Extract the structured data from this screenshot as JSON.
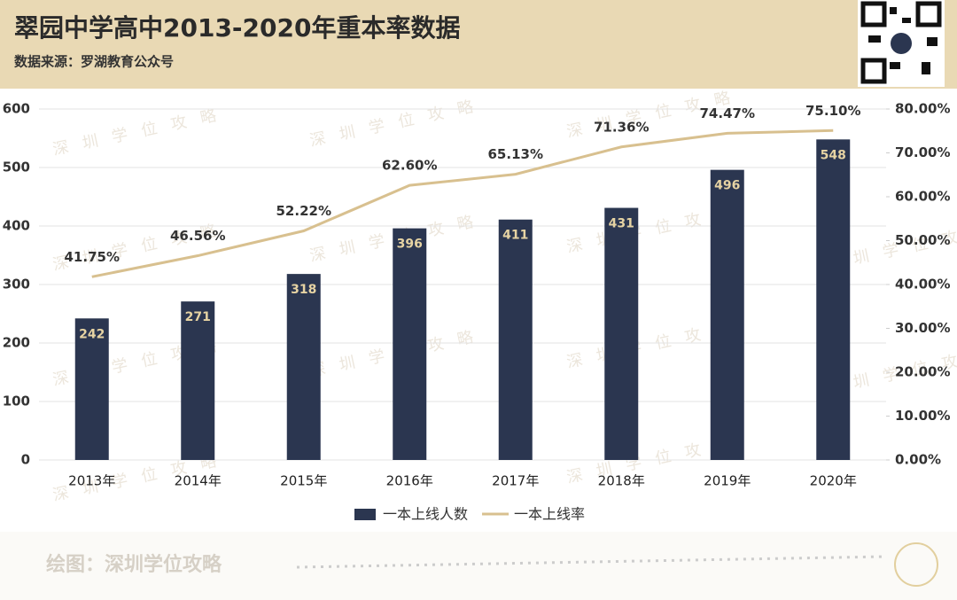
{
  "chart_data": {
    "type": "combo",
    "title": "翠园中学高中2013-2020年重本率数据",
    "subtitle": "数据来源：罗湖教育公众号",
    "footer": "绘图：深圳学位攻略",
    "watermark": "深圳学位攻略",
    "categories": [
      "2013年",
      "2014年",
      "2015年",
      "2016年",
      "2017年",
      "2018年",
      "2019年",
      "2020年"
    ],
    "series": [
      {
        "name": "一本上线人数",
        "type": "bar",
        "color": "#2b3650",
        "values": [
          242,
          271,
          318,
          396,
          411,
          431,
          496,
          548
        ]
      },
      {
        "name": "一本上线率",
        "type": "line",
        "axis": "y2",
        "color": "#d8c08f",
        "values": [
          41.75,
          46.56,
          52.22,
          62.6,
          65.13,
          71.36,
          74.47,
          75.1
        ],
        "value_labels": [
          "41.75%",
          "46.56%",
          "52.22%",
          "62.60%",
          "65.13%",
          "71.36%",
          "74.47%",
          "75.10%"
        ]
      }
    ],
    "ylim": [
      0,
      600
    ],
    "yticks": [
      0,
      100,
      200,
      300,
      400,
      500,
      600
    ],
    "y2lim": [
      0,
      80
    ],
    "y2ticks": [
      {
        "value": 0,
        "label": "0.00%"
      },
      {
        "value": 10,
        "label": "10.00%"
      },
      {
        "value": 20,
        "label": "20.00%"
      },
      {
        "value": 30,
        "label": "30.00%"
      },
      {
        "value": 40,
        "label": "40.00%"
      },
      {
        "value": 50,
        "label": "50.00%"
      },
      {
        "value": 60,
        "label": "60.00%"
      },
      {
        "value": 70,
        "label": "70.00%"
      },
      {
        "value": 80,
        "label": "80.00%"
      }
    ],
    "grid": true,
    "legend": "bottom"
  }
}
